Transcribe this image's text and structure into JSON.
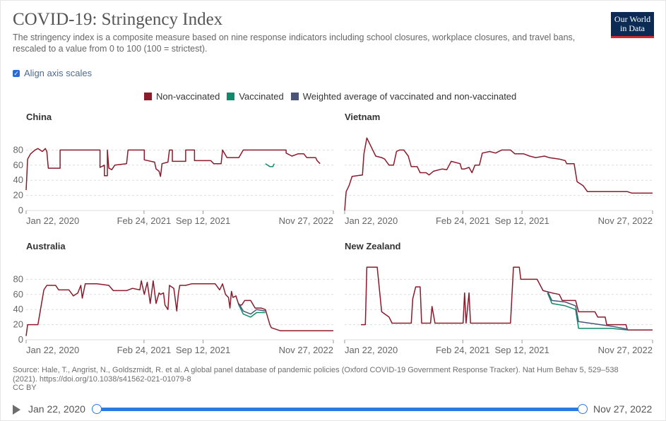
{
  "header": {
    "title": "COVID-19: Stringency Index",
    "subtitle": "The stringency index is a composite measure based on nine response indicators including school closures, workplace closures, and travel bans, rescaled to a value from 0 to 100 (100 = strictest).",
    "logo_line1": "Our World",
    "logo_line2": "in Data"
  },
  "controls": {
    "align_axis_label": "Align axis scales",
    "align_checked": true
  },
  "source": {
    "line1": "Source: Hale, T., Angrist, N., Goldszmidt, R. et al. A global panel database of pandemic policies (Oxford COVID-19 Government Response Tracker). Nat Hum Behav 5, 529–538",
    "line2": "(2021). https://doi.org/10.1038/s41562-021-01079-8",
    "line3": "CC BY"
  },
  "timeline": {
    "start": "Jan 22, 2020",
    "end": "Nov 27, 2022"
  },
  "chart_data": {
    "type": "line",
    "title": "COVID-19: Stringency Index",
    "legend": [
      {
        "name": "Non-vaccinated",
        "color": "#8b1a2b"
      },
      {
        "name": "Vaccinated",
        "color": "#0f8a6a"
      },
      {
        "name": "Weighted average of vaccinated and non-vaccinated",
        "color": "#4a5578"
      }
    ],
    "x_range": [
      0,
      1040
    ],
    "x_unit": "days since Jan 22, 2020",
    "x_ticks": [
      {
        "label": "Jan 22, 2020",
        "day": 0
      },
      {
        "label": "Feb 24, 2021",
        "day": 399
      },
      {
        "label": "Sep 12, 2021",
        "day": 599
      },
      {
        "label": "Nov 27, 2022",
        "day": 1040
      }
    ],
    "y_ticks": [
      0,
      20,
      40,
      60,
      80
    ],
    "ylim": [
      0,
      100
    ],
    "grid": true,
    "panels": [
      {
        "title": "China",
        "series": [
          {
            "name": "Non-vaccinated",
            "points": [
              [
                0,
                27
              ],
              [
                5,
                68
              ],
              [
                15,
                75
              ],
              [
                30,
                80
              ],
              [
                40,
                82
              ],
              [
                55,
                78
              ],
              [
                65,
                82
              ],
              [
                70,
                78
              ],
              [
                75,
                56
              ],
              [
                115,
                56
              ],
              [
                115,
                80
              ],
              [
                250,
                80
              ],
              [
                250,
                57
              ],
              [
                265,
                60
              ],
              [
                265,
                46
              ],
              [
                275,
                46
              ],
              [
                275,
                80
              ],
              [
                280,
                56
              ],
              [
                290,
                54
              ],
              [
                300,
                60
              ],
              [
                340,
                62
              ],
              [
                345,
                80
              ],
              [
                400,
                80
              ],
              [
                400,
                67
              ],
              [
                435,
                64
              ],
              [
                440,
                55
              ],
              [
                450,
                52
              ],
              [
                455,
                45
              ],
              [
                460,
                62
              ],
              [
                480,
                64
              ],
              [
                485,
                80
              ],
              [
                495,
                80
              ],
              [
                495,
                65
              ],
              [
                540,
                65
              ],
              [
                540,
                80
              ],
              [
                570,
                80
              ],
              [
                570,
                66
              ],
              [
                625,
                66
              ],
              [
                635,
                62
              ],
              [
                660,
                62
              ],
              [
                665,
                80
              ],
              [
                680,
                70
              ],
              [
                720,
                70
              ],
              [
                735,
                80
              ],
              [
                880,
                80
              ],
              [
                880,
                76
              ],
              [
                900,
                72
              ],
              [
                920,
                75
              ],
              [
                940,
                75
              ],
              [
                950,
                70
              ],
              [
                980,
                70
              ],
              [
                985,
                66
              ],
              [
                995,
                62
              ]
            ]
          },
          {
            "name": "Vaccinated",
            "points": [
              [
                810,
                62
              ],
              [
                825,
                58
              ],
              [
                835,
                58
              ],
              [
                840,
                62
              ]
            ]
          }
        ]
      },
      {
        "title": "Vietnam",
        "series": [
          {
            "name": "Non-vaccinated",
            "points": [
              [
                0,
                0
              ],
              [
                5,
                25
              ],
              [
                15,
                33
              ],
              [
                25,
                45
              ],
              [
                60,
                47
              ],
              [
                65,
                75
              ],
              [
                75,
                96
              ],
              [
                85,
                88
              ],
              [
                95,
                80
              ],
              [
                105,
                72
              ],
              [
                125,
                70
              ],
              [
                135,
                68
              ],
              [
                150,
                60
              ],
              [
                165,
                60
              ],
              [
                175,
                78
              ],
              [
                185,
                80
              ],
              [
                200,
                80
              ],
              [
                215,
                72
              ],
              [
                225,
                58
              ],
              [
                245,
                58
              ],
              [
                255,
                50
              ],
              [
                275,
                50
              ],
              [
                285,
                47
              ],
              [
                300,
                52
              ],
              [
                330,
                55
              ],
              [
                345,
                54
              ],
              [
                360,
                65
              ],
              [
                390,
                62
              ],
              [
                395,
                55
              ],
              [
                405,
                55
              ],
              [
                420,
                57
              ],
              [
                430,
                50
              ],
              [
                440,
                60
              ],
              [
                455,
                60
              ],
              [
                465,
                76
              ],
              [
                490,
                78
              ],
              [
                510,
                76
              ],
              [
                530,
                80
              ],
              [
                560,
                80
              ],
              [
                575,
                75
              ],
              [
                605,
                75
              ],
              [
                625,
                72
              ],
              [
                645,
                70
              ],
              [
                675,
                72
              ],
              [
                690,
                70
              ],
              [
                725,
                68
              ],
              [
                745,
                66
              ],
              [
                750,
                62
              ],
              [
                775,
                62
              ],
              [
                785,
                38
              ],
              [
                805,
                33
              ],
              [
                820,
                25
              ],
              [
                955,
                25
              ],
              [
                970,
                23
              ],
              [
                1040,
                23
              ]
            ]
          }
        ]
      },
      {
        "title": "Australia",
        "series": [
          {
            "name": "Non-vaccinated",
            "points": [
              [
                0,
                5
              ],
              [
                5,
                20
              ],
              [
                40,
                20
              ],
              [
                60,
                66
              ],
              [
                70,
                72
              ],
              [
                100,
                72
              ],
              [
                110,
                66
              ],
              [
                145,
                66
              ],
              [
                160,
                58
              ],
              [
                175,
                62
              ],
              [
                185,
                72
              ],
              [
                190,
                55
              ],
              [
                200,
                74
              ],
              [
                240,
                74
              ],
              [
                280,
                72
              ],
              [
                295,
                65
              ],
              [
                340,
                65
              ],
              [
                360,
                68
              ],
              [
                385,
                66
              ],
              [
                390,
                78
              ],
              [
                400,
                60
              ],
              [
                410,
                76
              ],
              [
                420,
                48
              ],
              [
                430,
                78
              ],
              [
                440,
                48
              ],
              [
                450,
                62
              ],
              [
                455,
                60
              ],
              [
                465,
                62
              ],
              [
                470,
                46
              ],
              [
                480,
                40
              ],
              [
                485,
                72
              ],
              [
                500,
                68
              ],
              [
                510,
                38
              ],
              [
                515,
                60
              ],
              [
                520,
                72
              ],
              [
                540,
                72
              ],
              [
                560,
                74
              ],
              [
                600,
                74
              ],
              [
                640,
                74
              ],
              [
                655,
                66
              ],
              [
                660,
                70
              ],
              [
                665,
                74
              ],
              [
                675,
                60
              ],
              [
                685,
                56
              ],
              [
                690,
                42
              ],
              [
                695,
                64
              ],
              [
                700,
                56
              ],
              [
                710,
                58
              ],
              [
                720,
                46
              ],
              [
                730,
                46
              ],
              [
                740,
                52
              ],
              [
                760,
                52
              ],
              [
                775,
                42
              ],
              [
                795,
                42
              ],
              [
                810,
                40
              ],
              [
                825,
                20
              ],
              [
                830,
                16
              ],
              [
                860,
                12
              ],
              [
                1040,
                12
              ]
            ]
          },
          {
            "name": "Vaccinated",
            "points": [
              [
                720,
                46
              ],
              [
                735,
                34
              ],
              [
                760,
                30
              ],
              [
                780,
                36
              ],
              [
                810,
                36
              ]
            ]
          },
          {
            "name": "Weighted average of vaccinated and non-vaccinated",
            "points": [
              [
                720,
                48
              ],
              [
                735,
                38
              ],
              [
                760,
                34
              ],
              [
                780,
                40
              ],
              [
                810,
                38
              ]
            ]
          }
        ]
      },
      {
        "title": "New Zealand",
        "series": [
          {
            "name": "Non-vaccinated",
            "points": [
              [
                55,
                20
              ],
              [
                70,
                20
              ],
              [
                75,
                96
              ],
              [
                110,
                96
              ],
              [
                125,
                37
              ],
              [
                150,
                30
              ],
              [
                160,
                22
              ],
              [
                225,
                22
              ],
              [
                230,
                54
              ],
              [
                240,
                70
              ],
              [
                255,
                70
              ],
              [
                260,
                22
              ],
              [
                290,
                22
              ],
              [
                295,
                44
              ],
              [
                305,
                22
              ],
              [
                400,
                22
              ],
              [
                405,
                62
              ],
              [
                410,
                22
              ],
              [
                420,
                62
              ],
              [
                425,
                22
              ],
              [
                560,
                22
              ],
              [
                570,
                96
              ],
              [
                590,
                96
              ],
              [
                595,
                80
              ],
              [
                650,
                80
              ],
              [
                670,
                65
              ],
              [
                700,
                62
              ],
              [
                725,
                60
              ],
              [
                735,
                52
              ],
              [
                780,
                52
              ],
              [
                790,
                37
              ],
              [
                845,
                37
              ],
              [
                855,
                30
              ],
              [
                880,
                30
              ],
              [
                885,
                20
              ],
              [
                950,
                20
              ],
              [
                955,
                13
              ],
              [
                1040,
                13
              ]
            ]
          },
          {
            "name": "Vaccinated",
            "points": [
              [
                685,
                62
              ],
              [
                700,
                48
              ],
              [
                745,
                45
              ],
              [
                780,
                40
              ],
              [
                790,
                15
              ],
              [
                900,
                15
              ],
              [
                955,
                13
              ]
            ]
          },
          {
            "name": "Weighted average of vaccinated and non-vaccinated",
            "points": [
              [
                685,
                64
              ],
              [
                700,
                52
              ],
              [
                745,
                50
              ],
              [
                780,
                45
              ],
              [
                790,
                24
              ],
              [
                900,
                18
              ],
              [
                955,
                14
              ]
            ]
          }
        ]
      }
    ]
  }
}
